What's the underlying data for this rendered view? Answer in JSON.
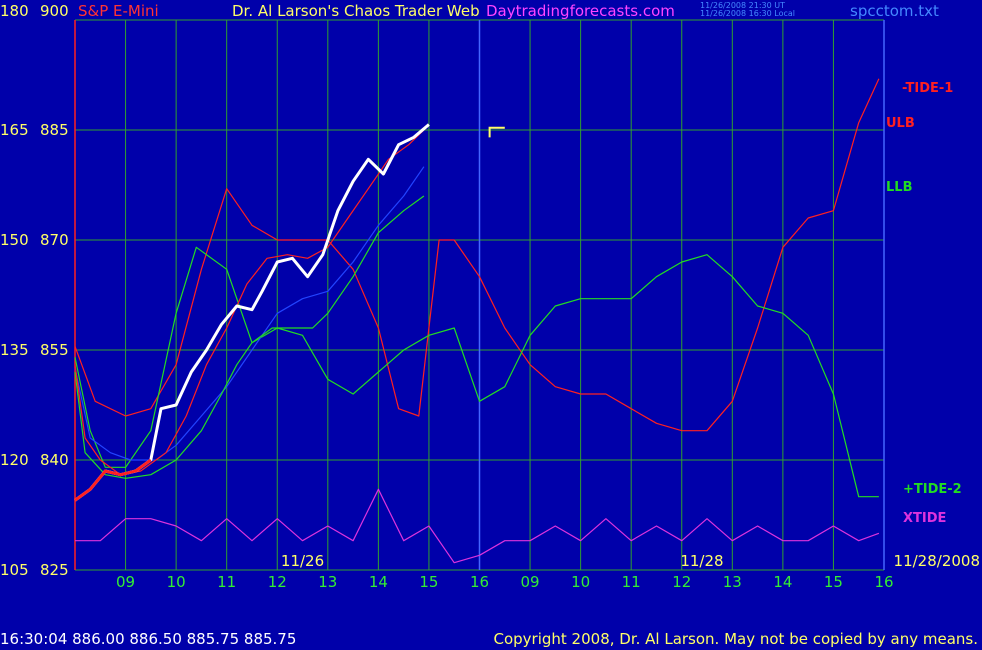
{
  "header": {
    "y1_top_label": "180",
    "y2_top_label": "900",
    "instrument": "S&P E-Mini",
    "title": "Dr. Al Larson's Chaos Trader Web",
    "site": "Daytradingforecasts.com",
    "timestamp_ut": "11/26/2008 21:30 UT",
    "timestamp_local": "11/26/2008 16:30 Local",
    "file": "spcctom.txt"
  },
  "footer": {
    "quote": "16:30:04  886.00  886.50  885.75  885.75",
    "copyright": "Copyright 2008, Dr. Al Larson. May not be copied by any means."
  },
  "colors": {
    "background": "#0000aa",
    "grid": "#2fa02f",
    "price": "#ffffff",
    "tide1": "#ff2020",
    "tide2": "#22dd22",
    "xtide": "#dd33dd",
    "ma_blue": "#2244ff",
    "axis_label": "#ffff66",
    "time_label": "#33ee33",
    "date_label": "#ffff66",
    "title": "#ffff66",
    "instrument": "#ff3333",
    "site": "#ff44ff",
    "file": "#4488ff",
    "footer_quote": "#ffffff",
    "footer_copyright": "#ffff66"
  },
  "chart_data": {
    "type": "line",
    "title": "S&P E-Mini",
    "y_axis_left": {
      "label": "",
      "ticks": [
        105,
        120,
        135,
        150,
        165,
        180
      ],
      "ylim": [
        105,
        180
      ]
    },
    "y_axis_right": {
      "label": "",
      "ticks": [
        825,
        840,
        855,
        870,
        885,
        900
      ],
      "ylim": [
        825,
        900
      ]
    },
    "x_ticks": [
      "09",
      "10",
      "11",
      "12",
      "13",
      "14",
      "15",
      "16",
      "09",
      "10",
      "11",
      "12",
      "13",
      "14",
      "15",
      "16"
    ],
    "x_dates": [
      "11/26",
      "11/28",
      "11/28/2008"
    ],
    "grid": true,
    "legend_labels": [
      "-TIDE-1",
      "ULB",
      "LLB",
      "+TIDE-2",
      "XTIDE"
    ],
    "last_quote": {
      "time": "16:30:04",
      "open": 886.0,
      "high": 886.5,
      "low": 885.75,
      "close": 885.75
    },
    "series": [
      {
        "name": "price",
        "x": [
          0,
          0.3,
          0.6,
          0.9,
          1.2,
          1.5,
          1.7,
          2.0,
          2.3,
          2.6,
          2.9,
          3.2,
          3.5,
          3.7,
          4.0,
          4.3,
          4.6,
          4.9,
          5.2,
          5.5,
          5.8,
          6.1,
          6.4,
          6.7,
          7.0
        ],
        "y": [
          834.5,
          836,
          838.5,
          838,
          838.5,
          840,
          847,
          847.5,
          852,
          855,
          858.5,
          861,
          860.5,
          863,
          867,
          867.5,
          865,
          868,
          874,
          878,
          881,
          879,
          883,
          884,
          885.75
        ]
      },
      {
        "name": "-TIDE-1",
        "x": [
          0,
          0.4,
          1.0,
          1.5,
          2.0,
          2.5,
          3.0,
          3.5,
          4.0,
          4.5,
          5.0,
          5.5,
          6.0,
          6.4,
          6.8,
          7.0,
          7.2,
          7.5,
          8.0,
          8.5,
          9.0,
          9.5,
          10.0,
          10.5,
          11.0,
          11.5,
          12.0,
          12.5,
          13.0,
          13.5,
          14.0,
          14.5,
          15.0,
          15.5,
          15.9
        ],
        "y": [
          855.5,
          848,
          846,
          847,
          853,
          866,
          877,
          872,
          870,
          870,
          870,
          866,
          858,
          847,
          846,
          858,
          870,
          870,
          865,
          858,
          853,
          850,
          849,
          849,
          847,
          845,
          844,
          844,
          848,
          858,
          869,
          873,
          874,
          886,
          892
        ]
      },
      {
        "name": "ULB",
        "x": [
          0,
          0.2,
          0.5,
          0.9,
          1.3,
          1.8,
          2.2,
          2.6,
          3.0,
          3.4,
          3.8,
          4.2,
          4.6,
          5.0,
          5.4,
          5.8,
          6.2,
          6.6,
          6.9
        ],
        "y": [
          853,
          843,
          840,
          838,
          838.5,
          841,
          846,
          853,
          858,
          864,
          867.5,
          868,
          867.5,
          869,
          873,
          877,
          881,
          883,
          885
        ]
      },
      {
        "name": "blue-band",
        "x": [
          0,
          0.3,
          0.7,
          1.1,
          1.6,
          2.0,
          2.5,
          3.0,
          3.5,
          4.0,
          4.5,
          5.0,
          5.5,
          6.0,
          6.5,
          6.9
        ],
        "y": [
          852.5,
          843,
          841,
          840,
          840,
          842,
          846,
          850,
          855,
          860,
          862,
          863,
          867,
          872,
          876,
          880
        ]
      },
      {
        "name": "LLB",
        "x": [
          0,
          0.2,
          0.6,
          1.0,
          1.5,
          2.0,
          2.5,
          2.9,
          3.2,
          3.5,
          3.9,
          4.3,
          4.7,
          5.0,
          5.5,
          6.0,
          6.5,
          6.9
        ],
        "y": [
          852,
          841,
          838,
          837.5,
          838,
          840,
          844,
          849,
          853,
          856,
          858,
          858,
          858,
          860,
          865,
          871,
          874,
          876
        ]
      },
      {
        "name": "+TIDE-2",
        "x": [
          0,
          0.3,
          0.6,
          1.0,
          1.5,
          2.0,
          2.4,
          3.0,
          3.5,
          4.0,
          4.5,
          5.0,
          5.5,
          6.0,
          6.5,
          7.0,
          7.5,
          8.0,
          8.5,
          9.0,
          9.5,
          10.0,
          10.5,
          11.0,
          11.5,
          12.0,
          12.5,
          13.0,
          13.5,
          14.0,
          14.5,
          15.0,
          15.5,
          15.9
        ],
        "y": [
          854,
          844,
          839,
          839,
          844,
          860,
          869,
          866,
          856,
          858,
          857,
          851,
          849,
          852,
          855,
          857,
          858,
          848,
          850,
          857,
          861,
          862,
          862,
          862,
          865,
          867,
          868,
          865,
          861,
          860,
          857,
          849,
          835,
          835
        ]
      },
      {
        "name": "XTIDE",
        "x": [
          0,
          0.5,
          1.0,
          1.5,
          2.0,
          2.5,
          3.0,
          3.5,
          4.0,
          4.5,
          5.0,
          5.5,
          6.0,
          6.5,
          7.0,
          7.5,
          8.0,
          8.5,
          9.0,
          9.5,
          10.0,
          10.5,
          11.0,
          11.5,
          12.0,
          12.5,
          13.0,
          13.5,
          14.0,
          14.5,
          15.0,
          15.5,
          15.9
        ],
        "y": [
          829,
          829,
          832,
          832,
          831,
          829,
          832,
          829,
          832,
          829,
          831,
          829,
          836,
          829,
          831,
          826,
          827,
          829,
          829,
          831,
          829,
          832,
          829,
          831,
          829,
          832,
          829,
          831,
          829,
          829,
          831,
          829,
          830
        ]
      }
    ]
  }
}
